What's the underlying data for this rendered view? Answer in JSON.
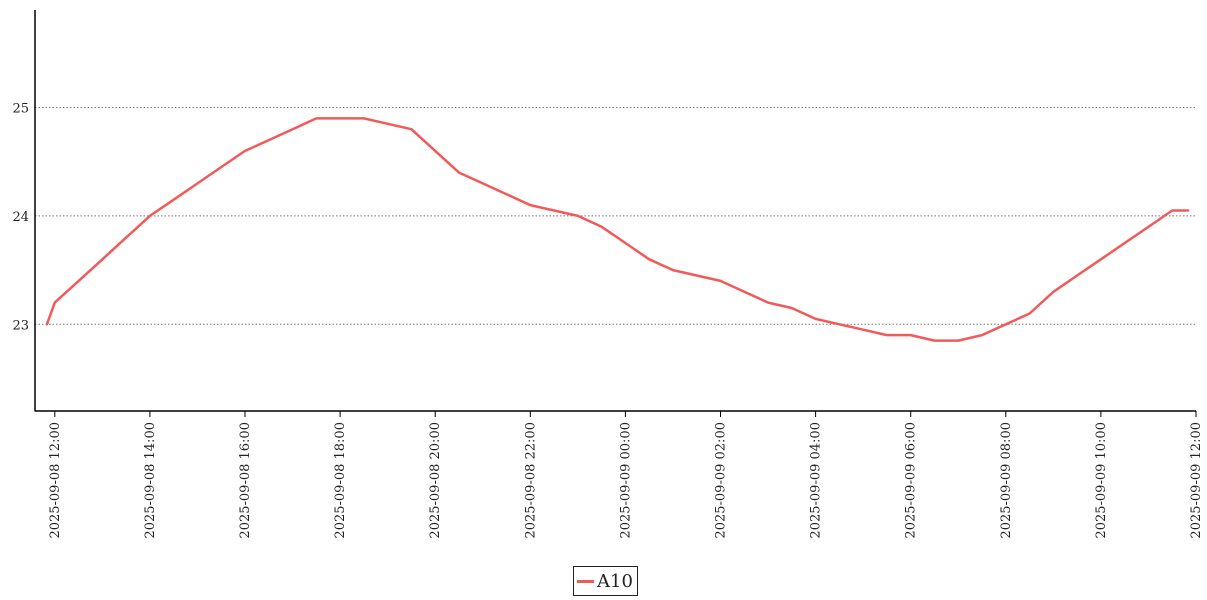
{
  "chart_data": {
    "type": "line",
    "title": "",
    "xlabel": "",
    "ylabel": "",
    "x_tick_labels": [
      "2025-09-08 12:00",
      "2025-09-08 14:00",
      "2025-09-08 16:00",
      "2025-09-08 18:00",
      "2025-09-08 20:00",
      "2025-09-08 22:00",
      "2025-09-09 00:00",
      "2025-09-09 02:00",
      "2025-09-09 04:00",
      "2025-09-09 06:00",
      "2025-09-09 08:00",
      "2025-09-09 10:00",
      "2025-09-09 12:00"
    ],
    "y_ticks": [
      23,
      24,
      25
    ],
    "xlim": [
      "2025-09-08 11:35",
      "2025-09-09 12:00"
    ],
    "ylim": [
      22.2,
      25.9
    ],
    "grid": "horizontal dotted",
    "legend_position": "bottom-center",
    "series": [
      {
        "name": "A10",
        "color": "#f25a5a",
        "x": [
          "2025-09-08 11:50",
          "2025-09-08 12:00",
          "2025-09-08 12:30",
          "2025-09-08 13:00",
          "2025-09-08 13:30",
          "2025-09-08 14:00",
          "2025-09-08 14:30",
          "2025-09-08 15:00",
          "2025-09-08 15:30",
          "2025-09-08 16:00",
          "2025-09-08 16:30",
          "2025-09-08 17:00",
          "2025-09-08 17:30",
          "2025-09-08 18:00",
          "2025-09-08 18:30",
          "2025-09-08 19:00",
          "2025-09-08 19:30",
          "2025-09-08 20:00",
          "2025-09-08 20:30",
          "2025-09-08 21:00",
          "2025-09-08 21:30",
          "2025-09-08 22:00",
          "2025-09-08 22:30",
          "2025-09-08 23:00",
          "2025-09-08 23:30",
          "2025-09-09 00:00",
          "2025-09-09 00:30",
          "2025-09-09 01:00",
          "2025-09-09 01:30",
          "2025-09-09 02:00",
          "2025-09-09 02:30",
          "2025-09-09 03:00",
          "2025-09-09 03:30",
          "2025-09-09 04:00",
          "2025-09-09 04:30",
          "2025-09-09 05:00",
          "2025-09-09 05:30",
          "2025-09-09 06:00",
          "2025-09-09 06:30",
          "2025-09-09 07:00",
          "2025-09-09 07:30",
          "2025-09-09 08:00",
          "2025-09-09 08:30",
          "2025-09-09 09:00",
          "2025-09-09 09:30",
          "2025-09-09 10:00",
          "2025-09-09 10:30",
          "2025-09-09 11:00",
          "2025-09-09 11:30",
          "2025-09-09 11:50"
        ],
        "values": [
          23.0,
          23.2,
          23.4,
          23.6,
          23.8,
          24.0,
          24.15,
          24.3,
          24.45,
          24.6,
          24.7,
          24.8,
          24.9,
          24.9,
          24.9,
          24.85,
          24.8,
          24.6,
          24.4,
          24.3,
          24.2,
          24.1,
          24.05,
          24.0,
          23.9,
          23.75,
          23.6,
          23.5,
          23.45,
          23.4,
          23.3,
          23.2,
          23.15,
          23.05,
          23.0,
          22.95,
          22.9,
          22.9,
          22.85,
          22.85,
          22.9,
          23.0,
          23.1,
          23.3,
          23.45,
          23.6,
          23.75,
          23.9,
          24.05,
          24.05
        ]
      }
    ]
  }
}
